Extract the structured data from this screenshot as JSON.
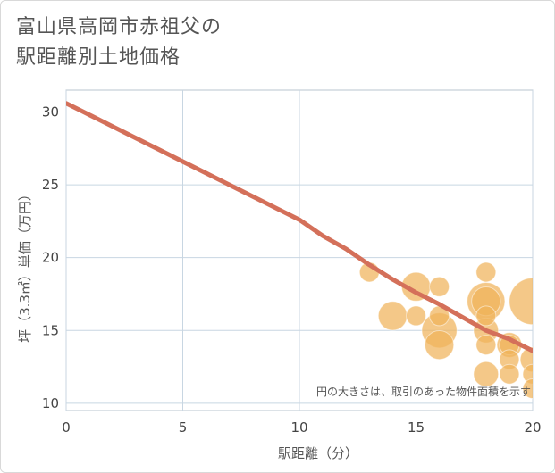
{
  "title_line1": "富山県高岡市赤祖父の",
  "title_line2": "駅距離別土地価格",
  "chart_data": {
    "type": "scatter",
    "xlabel": "駅距離（分）",
    "ylabel": "坪（3.3㎡）単価（万円）",
    "xlim": [
      0,
      20
    ],
    "ylim": [
      9.5,
      31.5
    ],
    "xticks": [
      0,
      5,
      10,
      15,
      20
    ],
    "yticks": [
      10,
      15,
      20,
      25,
      30
    ],
    "x_tick_labels": [
      "0",
      "5",
      "10",
      "15",
      "20"
    ],
    "y_tick_labels": [
      "10",
      "15",
      "20",
      "25",
      "30"
    ],
    "note": "円の大きさは、取引のあった物件面積を示す",
    "trend_line": {
      "x": [
        0,
        1,
        2,
        3,
        4,
        5,
        6,
        7,
        8,
        9,
        10,
        11,
        12,
        13,
        14,
        15,
        16,
        17,
        18,
        19,
        20
      ],
      "y": [
        30.6,
        29.8,
        29.0,
        28.2,
        27.4,
        26.6,
        25.8,
        25.0,
        24.2,
        23.4,
        22.6,
        21.5,
        20.6,
        19.5,
        18.5,
        17.6,
        16.8,
        15.9,
        15.0,
        14.4,
        13.6
      ]
    },
    "points": [
      {
        "x": 13,
        "y": 19,
        "size": 1
      },
      {
        "x": 14,
        "y": 16,
        "size": 3
      },
      {
        "x": 15,
        "y": 18,
        "size": 3
      },
      {
        "x": 15,
        "y": 16,
        "size": 1
      },
      {
        "x": 16,
        "y": 18,
        "size": 1
      },
      {
        "x": 16,
        "y": 16,
        "size": 1
      },
      {
        "x": 16,
        "y": 15,
        "size": 5
      },
      {
        "x": 16,
        "y": 14,
        "size": 3
      },
      {
        "x": 18,
        "y": 19,
        "size": 1
      },
      {
        "x": 18,
        "y": 17,
        "size": 6
      },
      {
        "x": 18,
        "y": 17,
        "size": 3
      },
      {
        "x": 18,
        "y": 16,
        "size": 1
      },
      {
        "x": 18,
        "y": 15,
        "size": 2
      },
      {
        "x": 18,
        "y": 14,
        "size": 1
      },
      {
        "x": 18,
        "y": 12,
        "size": 2
      },
      {
        "x": 19,
        "y": 14,
        "size": 2
      },
      {
        "x": 19,
        "y": 14,
        "size": 1
      },
      {
        "x": 19,
        "y": 13,
        "size": 1
      },
      {
        "x": 19,
        "y": 12,
        "size": 1
      },
      {
        "x": 20,
        "y": 17,
        "size": 10
      },
      {
        "x": 20,
        "y": 13,
        "size": 2
      },
      {
        "x": 20,
        "y": 12,
        "size": 1
      },
      {
        "x": 20,
        "y": 11,
        "size": 1
      }
    ]
  },
  "colors": {
    "trend": "#d4705a",
    "bubble": "#f0b35a",
    "grid": "#c8d6e2",
    "frame": "#b8c4cf"
  }
}
